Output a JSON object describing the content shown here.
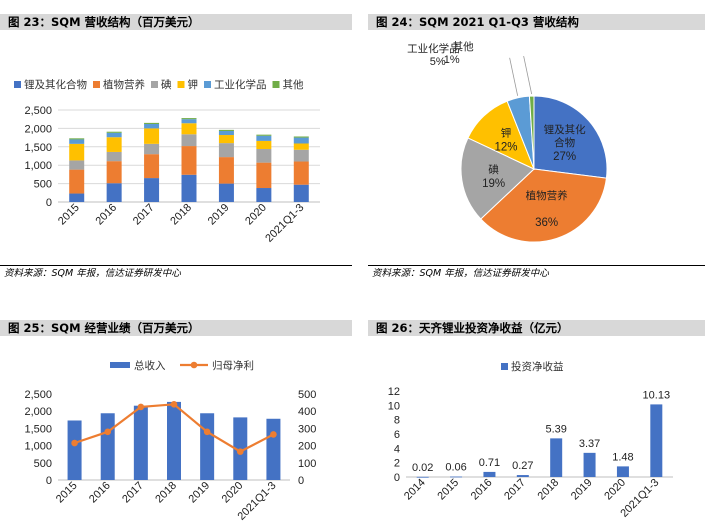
{
  "panels": {
    "p23": {
      "title": "图 23：SQM 营收结构（百万美元）",
      "source": "资料来源：SQM 年报，信达证券研发中心"
    },
    "p24": {
      "title": "图 24：SQM 2021 Q1-Q3 营收结构",
      "source": "资料来源：SQM 年报，信达证券研发中心"
    },
    "p25": {
      "title": "图 25：SQM 经营业绩（百万美元）"
    },
    "p26": {
      "title": "图 26：天齐锂业投资净收益（亿元）"
    }
  },
  "chart_data": [
    {
      "id": "sqm-revenue-structure",
      "type": "bar",
      "stacked": true,
      "title": "图 23：SQM 营收结构（百万美元）",
      "categories": [
        "2015",
        "2016",
        "2017",
        "2018",
        "2019",
        "2020",
        "2021Q1-3"
      ],
      "series": [
        {
          "name": "锂及其化合物",
          "color": "#4472c4",
          "values": [
            230,
            510,
            650,
            740,
            500,
            380,
            470
          ]
        },
        {
          "name": "植物营养",
          "color": "#ed7d31",
          "values": [
            650,
            600,
            650,
            780,
            720,
            690,
            630
          ]
        },
        {
          "name": "碘",
          "color": "#a5a5a5",
          "values": [
            250,
            250,
            280,
            320,
            380,
            370,
            320
          ]
        },
        {
          "name": "钾",
          "color": "#ffc000",
          "values": [
            450,
            400,
            420,
            300,
            220,
            220,
            170
          ]
        },
        {
          "name": "工业化学品",
          "color": "#5b9bd5",
          "values": [
            120,
            120,
            120,
            110,
            110,
            140,
            160
          ]
        },
        {
          "name": "其他",
          "color": "#70ad47",
          "values": [
            30,
            30,
            30,
            30,
            30,
            30,
            30
          ]
        }
      ],
      "ylim": [
        0,
        2500
      ],
      "yticks": [
        0,
        500,
        1000,
        1500,
        2000,
        2500
      ],
      "ytick_labels": [
        "0",
        "500",
        "1,000",
        "1,500",
        "2,000",
        "2,500"
      ],
      "grid": true,
      "legend": "top"
    },
    {
      "id": "sqm-2021-revenue-mix",
      "type": "pie",
      "title": "图 24：SQM 2021 Q1-Q3 营收结构",
      "slices": [
        {
          "name": "锂及其化合物",
          "value": 27,
          "label": "27%",
          "color": "#4472c4"
        },
        {
          "name": "植物营养",
          "value": 36,
          "label": "36%",
          "color": "#ed7d31"
        },
        {
          "name": "碘",
          "value": 19,
          "label": "19%",
          "color": "#a5a5a5"
        },
        {
          "name": "钾",
          "value": 12,
          "label": "12%",
          "color": "#ffc000"
        },
        {
          "name": "工业化学品",
          "value": 5,
          "label": "5%",
          "color": "#5b9bd5"
        },
        {
          "name": "其他",
          "value": 1,
          "label": "1%",
          "color": "#70ad47"
        }
      ]
    },
    {
      "id": "sqm-operating-results",
      "type": "bar",
      "title": "图 25：SQM 经营业绩（百万美元）",
      "categories": [
        "2015",
        "2016",
        "2017",
        "2018",
        "2019",
        "2020",
        "2021Q1-3"
      ],
      "series": [
        {
          "name": "总收入",
          "type": "bar",
          "axis": "left",
          "color": "#4472c4",
          "values": [
            1730,
            1940,
            2160,
            2270,
            1940,
            1820,
            1780
          ]
        },
        {
          "name": "归母净利",
          "type": "line",
          "axis": "right",
          "color": "#ed7d31",
          "values": [
            215,
            280,
            425,
            440,
            280,
            165,
            265
          ]
        }
      ],
      "ylim": [
        0,
        2500
      ],
      "yticks": [
        0,
        500,
        1000,
        1500,
        2000,
        2500
      ],
      "ytick_labels": [
        "0",
        "500",
        "1,000",
        "1,500",
        "2,000",
        "2,500"
      ],
      "y2lim": [
        0,
        500
      ],
      "y2ticks": [
        0,
        100,
        200,
        300,
        400,
        500
      ],
      "grid": false,
      "legend": "top"
    },
    {
      "id": "tianqi-investment-income",
      "type": "bar",
      "title": "图 26：天齐锂业投资净收益（亿元）",
      "categories": [
        "2014",
        "2015",
        "2016",
        "2017",
        "2018",
        "2019",
        "2020",
        "2021Q1-3"
      ],
      "series": [
        {
          "name": "投资净收益",
          "color": "#4472c4",
          "values": [
            0.02,
            0.06,
            0.71,
            0.27,
            5.39,
            3.37,
            1.48,
            10.13
          ]
        }
      ],
      "data_labels": [
        "0.02",
        "0.06",
        "0.71",
        "0.27",
        "5.39",
        "3.37",
        "1.48",
        "10.13"
      ],
      "ylim": [
        0,
        12
      ],
      "yticks": [
        0,
        2,
        4,
        6,
        8,
        10,
        12
      ],
      "grid": false,
      "legend": "top"
    }
  ]
}
